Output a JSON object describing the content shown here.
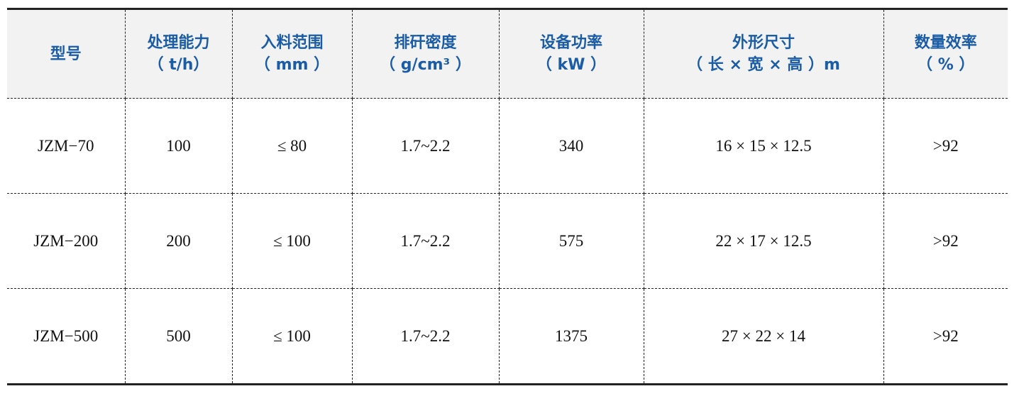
{
  "table": {
    "headers": [
      {
        "line1": "型号",
        "line2": ""
      },
      {
        "line1": "处理能力",
        "line2": "（ t/h）"
      },
      {
        "line1": "入料范围",
        "line2": "（ mm ）"
      },
      {
        "line1": "排矸密度",
        "line2": "（ g/cm³ ）"
      },
      {
        "line1": "设备功率",
        "line2": "（ kW ）"
      },
      {
        "line1": "外形尺寸",
        "line2": "（ 长 × 宽 × 高 ）m"
      },
      {
        "line1": "数量效率",
        "line2": "（ % ）"
      }
    ],
    "rows": [
      [
        "JZM−70",
        "100",
        "≤ 80",
        "1.7~2.2",
        "340",
        "16 × 15 × 12.5",
        ">92"
      ],
      [
        "JZM−200",
        "200",
        "≤ 100",
        "1.7~2.2",
        "575",
        "22 × 17 × 12.5",
        ">92"
      ],
      [
        "JZM−500",
        "500",
        "≤ 100",
        "1.7~2.2",
        "1375",
        "27 × 22 × 14",
        ">92"
      ]
    ]
  },
  "colors": {
    "header_text": "#1b5ca6",
    "header_bg": "#f2f2f2"
  }
}
